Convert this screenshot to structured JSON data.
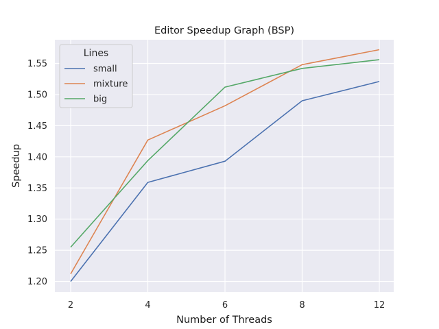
{
  "chart_data": {
    "type": "line",
    "title": "Editor Speedup Graph (BSP)",
    "xlabel": "Number of Threads",
    "ylabel": "Speedup",
    "categories": [
      "2",
      "4",
      "6",
      "8",
      "12"
    ],
    "ylim": [
      1.183,
      1.588
    ],
    "yticks": [
      "1.20",
      "1.25",
      "1.30",
      "1.35",
      "1.40",
      "1.45",
      "1.50",
      "1.55"
    ],
    "grid": true,
    "legend": {
      "title": "Lines",
      "placement": "top-left"
    },
    "series": [
      {
        "name": "small",
        "color": "#4c72b0",
        "values": [
          1.2,
          1.359,
          1.393,
          1.49,
          1.521
        ]
      },
      {
        "name": "mixture",
        "color": "#dd8452",
        "values": [
          1.212,
          1.427,
          1.482,
          1.548,
          1.572
        ]
      },
      {
        "name": "big",
        "color": "#55a868",
        "values": [
          1.255,
          1.394,
          1.512,
          1.542,
          1.556
        ]
      }
    ]
  }
}
